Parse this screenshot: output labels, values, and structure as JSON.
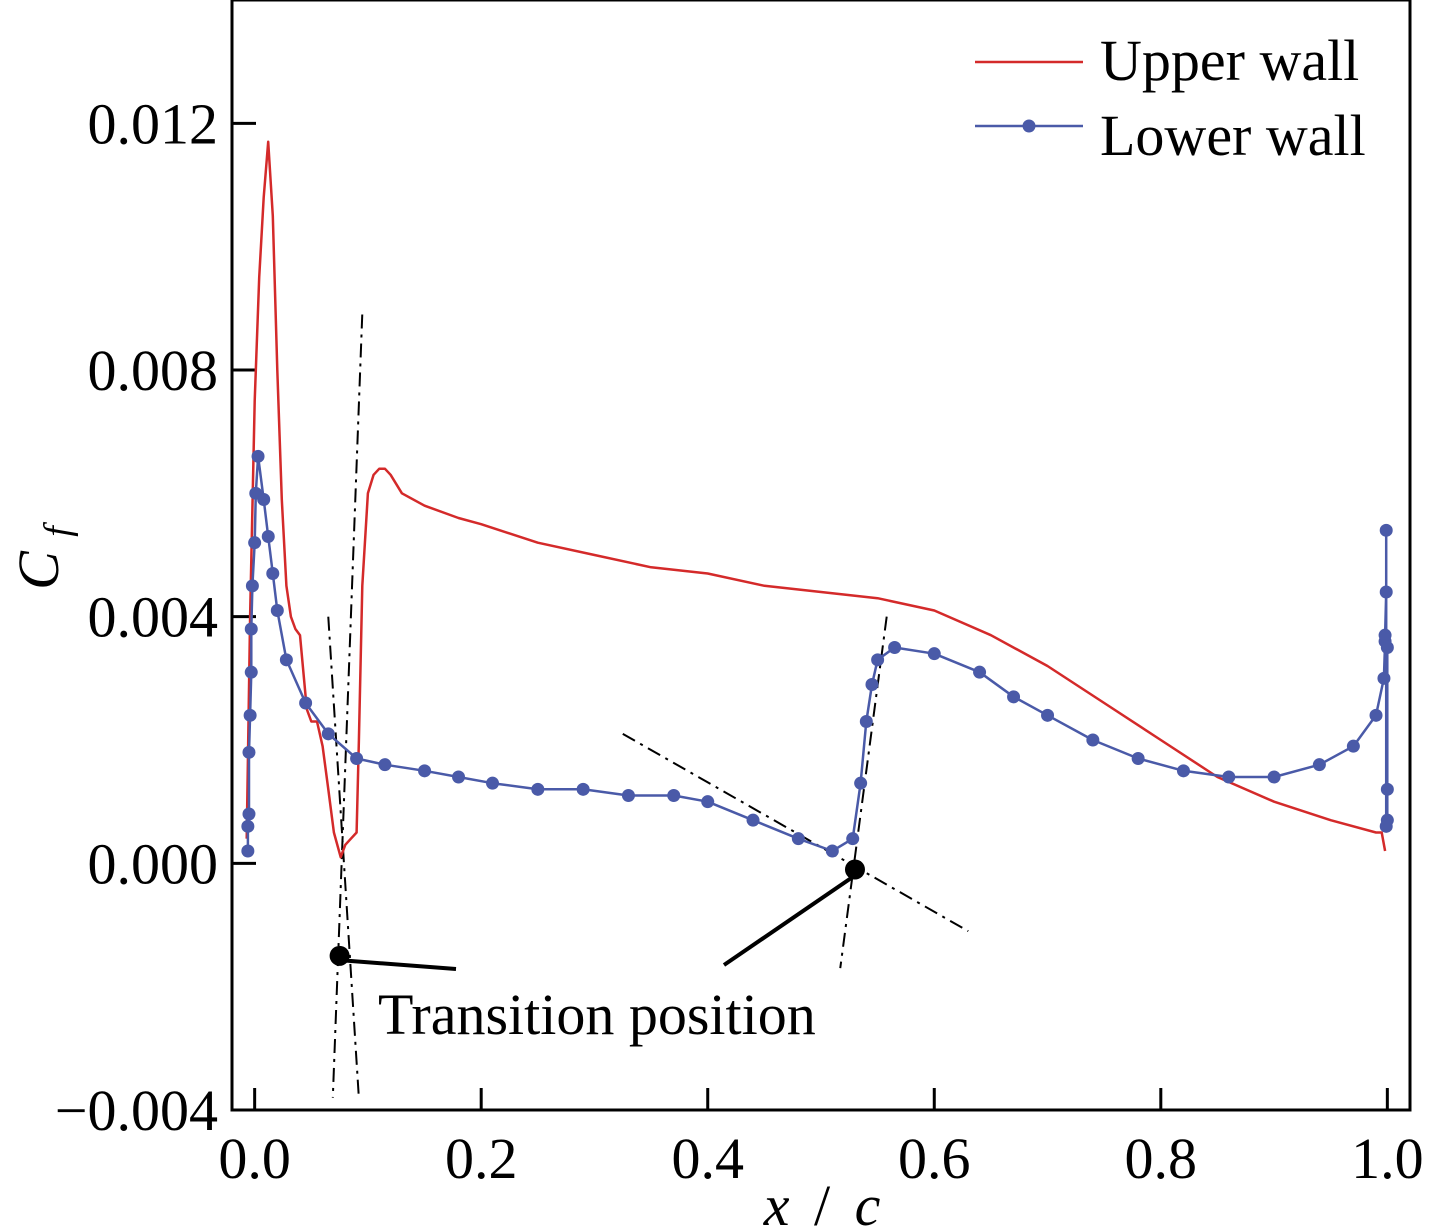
{
  "chart_data": {
    "type": "line",
    "xlabel_var": "x",
    "xlabel_sep": "/",
    "xlabel_den": "c",
    "ylabel_main": "C",
    "ylabel_sub": "f",
    "xlim": [
      -0.02,
      1.02
    ],
    "ylim": [
      -0.004,
      0.014
    ],
    "x_ticks": [
      0.0,
      0.2,
      0.4,
      0.6,
      0.8,
      1.0
    ],
    "x_tick_labels": [
      "0.0",
      "0.2",
      "0.4",
      "0.6",
      "0.8",
      "1.0"
    ],
    "y_ticks": [
      -0.004,
      0.0,
      0.004,
      0.008,
      0.012
    ],
    "y_tick_labels": [
      "−0.004",
      "0.000",
      "0.004",
      "0.008",
      "0.012"
    ],
    "grid": false,
    "legend_position": "top-right",
    "series": [
      {
        "name": "Upper wall",
        "color": "#d42a2a",
        "marker": "none",
        "x": [
          -0.007,
          -0.004,
          0.0,
          0.004,
          0.008,
          0.012,
          0.016,
          0.02,
          0.024,
          0.028,
          0.032,
          0.036,
          0.04,
          0.046,
          0.05,
          0.055,
          0.06,
          0.065,
          0.07,
          0.076,
          0.08,
          0.085,
          0.09,
          0.092,
          0.095,
          0.1,
          0.105,
          0.11,
          0.115,
          0.12,
          0.13,
          0.15,
          0.18,
          0.2,
          0.25,
          0.3,
          0.35,
          0.4,
          0.45,
          0.5,
          0.55,
          0.6,
          0.65,
          0.7,
          0.75,
          0.8,
          0.85,
          0.9,
          0.95,
          0.99,
          0.995,
          0.998
        ],
        "y": [
          0.0004,
          0.004,
          0.0075,
          0.0095,
          0.0108,
          0.0117,
          0.0105,
          0.008,
          0.0059,
          0.0045,
          0.004,
          0.0038,
          0.0037,
          0.0025,
          0.0023,
          0.0023,
          0.0019,
          0.0012,
          0.0005,
          0.0001,
          0.0003,
          0.0004,
          0.0005,
          0.002,
          0.0045,
          0.006,
          0.0063,
          0.0064,
          0.0064,
          0.0063,
          0.006,
          0.0058,
          0.0056,
          0.0055,
          0.0052,
          0.005,
          0.0048,
          0.0047,
          0.0045,
          0.0044,
          0.0043,
          0.0041,
          0.0037,
          0.0032,
          0.0026,
          0.002,
          0.0014,
          0.001,
          0.0007,
          0.0005,
          0.0005,
          0.0002
        ]
      },
      {
        "name": "Lower wall",
        "color": "#4a5aa8",
        "marker": "circle",
        "x": [
          -0.006,
          -0.006,
          -0.005,
          -0.005,
          -0.004,
          -0.003,
          -0.003,
          -0.002,
          0.0,
          0.001,
          0.003,
          0.008,
          0.012,
          0.016,
          0.02,
          0.028,
          0.045,
          0.065,
          0.09,
          0.115,
          0.15,
          0.18,
          0.21,
          0.25,
          0.29,
          0.33,
          0.37,
          0.4,
          0.44,
          0.48,
          0.51,
          0.528,
          0.535,
          0.54,
          0.545,
          0.55,
          0.565,
          0.6,
          0.64,
          0.67,
          0.7,
          0.74,
          0.78,
          0.82,
          0.86,
          0.9,
          0.94,
          0.97,
          0.99,
          0.997,
          0.998,
          0.998,
          0.999,
          0.999,
          0.999,
          1.0,
          1.0,
          1.0
        ],
        "y": [
          0.0002,
          0.0006,
          0.0008,
          0.0018,
          0.0024,
          0.0031,
          0.0038,
          0.0045,
          0.0052,
          0.006,
          0.0066,
          0.0059,
          0.0053,
          0.0047,
          0.0041,
          0.0033,
          0.0026,
          0.0021,
          0.0017,
          0.0016,
          0.0015,
          0.0014,
          0.0013,
          0.0012,
          0.0012,
          0.0011,
          0.0011,
          0.001,
          0.0007,
          0.0004,
          0.0002,
          0.0004,
          0.0013,
          0.0023,
          0.0029,
          0.0033,
          0.0035,
          0.0034,
          0.0031,
          0.0027,
          0.0024,
          0.002,
          0.0017,
          0.0015,
          0.0014,
          0.0014,
          0.0016,
          0.0019,
          0.0024,
          0.003,
          0.0036,
          0.0037,
          0.0044,
          0.0054,
          0.0006,
          0.0007,
          0.0012,
          0.0035
        ]
      }
    ],
    "transition_points": [
      {
        "x": 0.075,
        "y": -0.0015
      },
      {
        "x": 0.53,
        "y": -0.0001
      }
    ],
    "tangent_lines": [
      {
        "x1": 0.065,
        "y1": 0.004,
        "x2": 0.092,
        "y2": -0.0038
      },
      {
        "x1": 0.095,
        "y1": 0.0089,
        "x2": 0.069,
        "y2": -0.0038
      },
      {
        "x1": 0.325,
        "y1": 0.0021,
        "x2": 0.63,
        "y2": -0.0011
      },
      {
        "x1": 0.558,
        "y1": 0.004,
        "x2": 0.517,
        "y2": -0.0017
      }
    ],
    "annotation": {
      "text": "Transition position"
    }
  }
}
